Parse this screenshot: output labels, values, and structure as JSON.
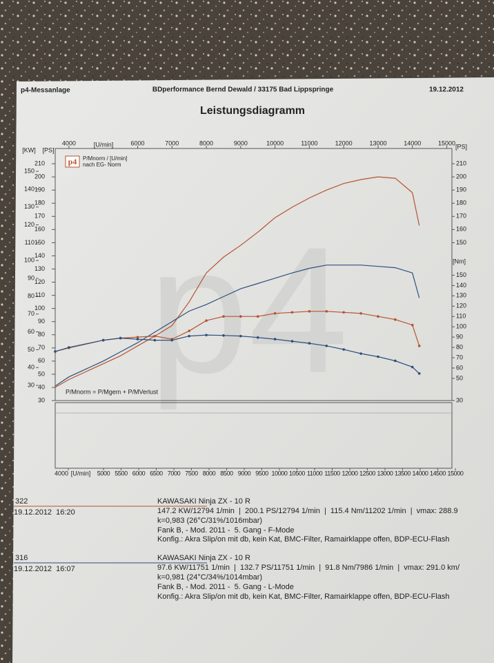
{
  "header": {
    "left": "p4-Messanlage",
    "center": "BDperformance Bernd Dewald / 33175 Bad Lippspringe",
    "right": "19.12.2012",
    "title": "Leistungsdiagramm"
  },
  "chart_data": {
    "type": "line",
    "legend": [
      "P/Mnorm / [U/min]",
      "nach EG- Norm"
    ],
    "logo": "p4",
    "watermark": "p4",
    "footnote": "P/Mnorm = P/Mgem + P/MVerlust",
    "xlabel": "[U/min]",
    "xlim": [
      3600,
      15150
    ],
    "xticks": [
      4000,
      6000,
      7000,
      8000,
      9000,
      10000,
      11000,
      12000,
      13000,
      14000,
      15000
    ],
    "ylabel": "[PS]",
    "ylim": [
      30,
      221.6
    ],
    "yticks": [
      30,
      40,
      50,
      60,
      70,
      80,
      90,
      100,
      110,
      120,
      130,
      140,
      150,
      160,
      170,
      180,
      190,
      200,
      210
    ],
    "kw_label": "[KW]",
    "kw_lim": [
      21.5,
      162.8
    ],
    "kw_ticks": [
      30,
      40,
      50,
      60,
      70,
      80,
      90,
      100,
      110,
      120,
      130,
      140,
      150
    ],
    "right_ylabel": "[PS]",
    "right_yticks": [
      30,
      150,
      160,
      170,
      180,
      190,
      200,
      210
    ],
    "y2label": "[Nm]",
    "y2lim": [
      28.5,
      272.8
    ],
    "y2ticks": [
      50,
      60,
      70,
      80,
      90,
      100,
      110,
      120,
      130,
      140,
      150
    ],
    "x2label": "[U/min]",
    "x2lim": [
      3627,
      14902
    ],
    "x2ticks": [
      4000,
      5000,
      5500,
      6000,
      6500,
      7000,
      7500,
      8000,
      8500,
      9000,
      9500,
      10000,
      10500,
      11000,
      11500,
      12000,
      12500,
      13000,
      13500,
      14000,
      14500,
      15000
    ],
    "x": [
      3600,
      4000,
      5000,
      5500,
      6000,
      6500,
      7000,
      7500,
      8000,
      8500,
      9000,
      9500,
      10000,
      10500,
      11000,
      11500,
      12000,
      12500,
      13000,
      13500,
      14000,
      14200
    ],
    "series": [
      {
        "color": "#b5532f",
        "axis": "y",
        "markers": false,
        "values": [
          40,
          46,
          58,
          64,
          71.6,
          79,
          87,
          105,
          127,
          139,
          148,
          158,
          169,
          177,
          184,
          190,
          195,
          198,
          200,
          199,
          188,
          163
        ]
      },
      {
        "color": "#2c4f7c",
        "axis": "y",
        "markers": false,
        "values": [
          41,
          48,
          60,
          67,
          74,
          82,
          90,
          98,
          103,
          109,
          115,
          119,
          123,
          127,
          130.5,
          133,
          133,
          133,
          132,
          131,
          127,
          108
        ]
      },
      {
        "color": "#b5532f",
        "axis": "y2",
        "markers": true,
        "values": [
          76,
          79.5,
          87,
          89,
          90,
          91,
          88,
          96,
          106,
          110,
          110,
          110,
          113,
          114,
          115,
          115,
          114,
          113,
          110,
          107,
          101.7,
          81.5
        ]
      },
      {
        "color": "#2c4f7c",
        "axis": "y2",
        "markers": true,
        "values": [
          76,
          80,
          87,
          89,
          88,
          87,
          87,
          91,
          92,
          91.6,
          91,
          89.6,
          88,
          86,
          84,
          81.5,
          78,
          74,
          71,
          67,
          61,
          54.7
        ]
      }
    ]
  },
  "runs": [
    {
      "id": "322",
      "datetime": "19.12.2012  16:20",
      "vehicle": "KAWASAKI Ninja ZX - 10 R",
      "results": "147.2 KW/12794 1/min  |  200.1 PS/12794 1/min  |  115.4 Nm/11202 1/min  |  vmax: 288.9",
      "conditions": "k=0,983 (26°C/31%/1016mbar)",
      "setup": "Fank B, - Mod. 2011 -  5. Gang - F-Mode",
      "config": "Konfig.: Akra Slip/on mit db, kein Kat, BMC-Filter, Ramairklappe offen, BDP-ECU-Flash"
    },
    {
      "id": "316",
      "datetime": "19.12.2012  16:07",
      "vehicle": "KAWASAKI Ninja ZX - 10 R",
      "results": "97.6 KW/11751 1/min  |  132.7 PS/11751 1/min  |  91.8 Nm/7986 1/min  |  vmax: 291.0 km/",
      "conditions": "k=0,981 (24°C/34%/1014mbar)",
      "setup": "Fank B, - Mod. 2011 -  5. Gang - L-Mode",
      "config": "Konfig.: Akra Slip/on mit db, kein Kat, BMC-Filter, Ramairklappe offen, BDP-ECU-Flash"
    }
  ]
}
